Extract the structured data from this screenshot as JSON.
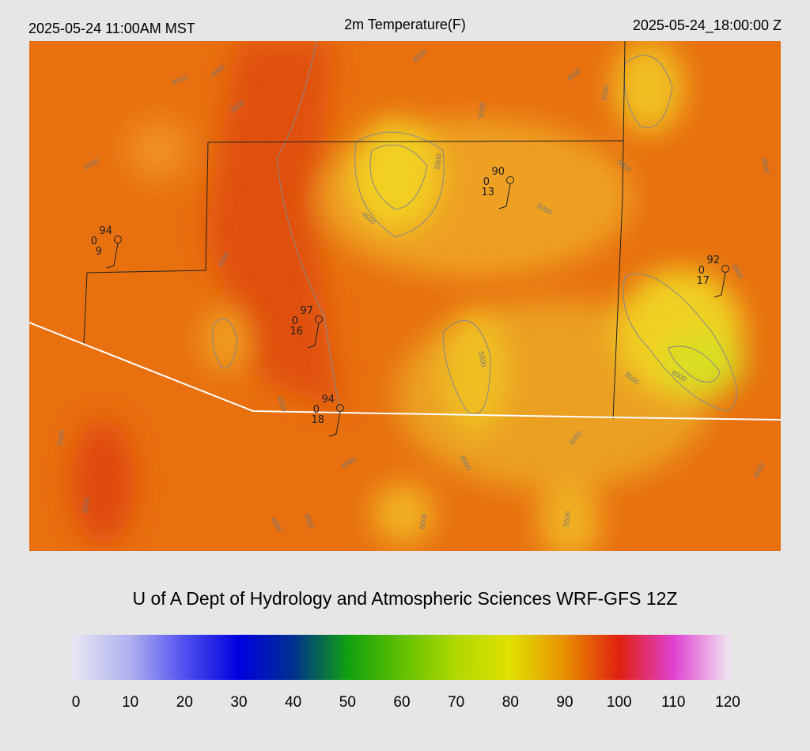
{
  "header": {
    "left": "2025-05-24 11:00AM MST",
    "title": "2m Temperature(F)",
    "right": "2025-05-24_18:00:00 Z"
  },
  "credit": "U of A Dept of Hydrology and Atmospheric Sciences WRF-GFS 12Z",
  "colorbar": {
    "ticks": [
      0,
      10,
      20,
      30,
      40,
      50,
      60,
      70,
      80,
      90,
      100,
      110,
      120
    ],
    "colors": [
      "#e4e4f2",
      "#b0b0f0",
      "#5050f0",
      "#0000e0",
      "#003090",
      "#10a010",
      "#60c000",
      "#b0d800",
      "#e0e000",
      "#e89000",
      "#e02010",
      "#e040d0",
      "#f0e0f0"
    ]
  },
  "stations": [
    {
      "temp": 94,
      "mid": 0,
      "dew": 9
    },
    {
      "temp": 97,
      "mid": 0,
      "dew": 16
    },
    {
      "temp": 94,
      "mid": 0,
      "dew": 18
    },
    {
      "temp": 90,
      "mid": 0,
      "dew": 13
    },
    {
      "temp": 92,
      "mid": 0,
      "dew": 17
    }
  ],
  "contour_labels": [
    4000,
    4000,
    3500,
    3500,
    4000,
    4500,
    5000,
    5000,
    5500,
    5000,
    4000,
    4500,
    5000,
    4500,
    4500,
    5500,
    5500,
    6000,
    4500,
    5000,
    4500,
    4500,
    3500,
    3500,
    4500,
    4000,
    5000,
    5500,
    4500
  ]
}
